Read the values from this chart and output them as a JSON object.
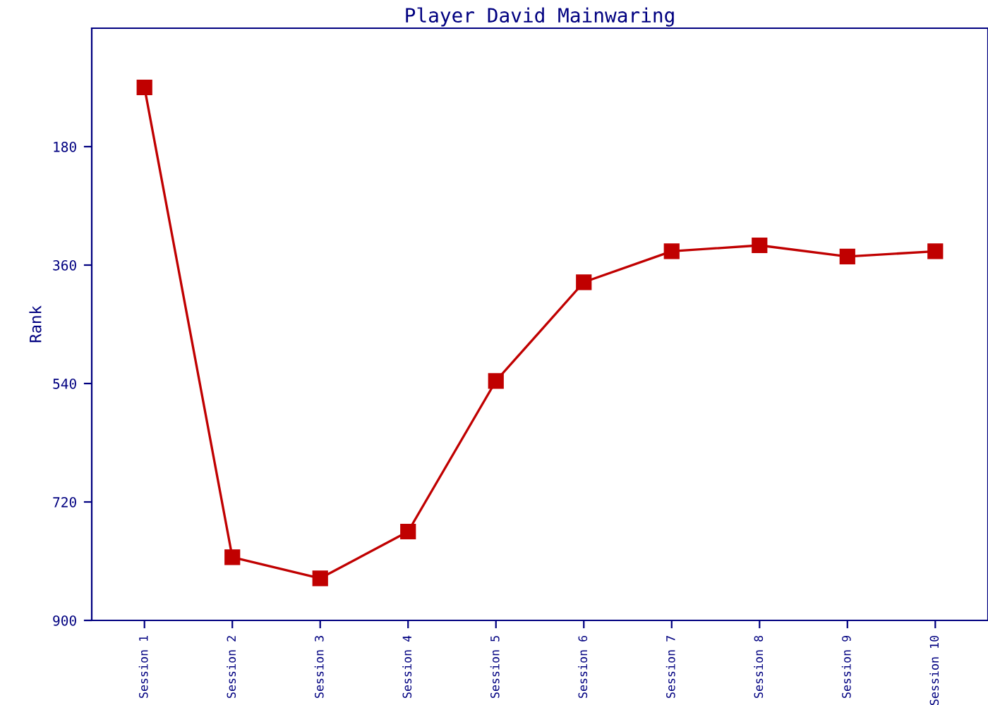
{
  "chart_data": {
    "type": "line",
    "title": "Player David Mainwaring",
    "ylabel": "Rank",
    "categories": [
      "Session 1",
      "Session 2",
      "Session 3",
      "Session 4",
      "Session 5",
      "Session 6",
      "Session 7",
      "Session 8",
      "Session 9",
      "Session 10"
    ],
    "series": [
      {
        "color": "#c00000",
        "values": [
          90,
          804,
          836,
          765,
          536,
          386,
          339,
          330,
          347,
          339
        ]
      }
    ],
    "ylim": [
      900,
      0
    ],
    "yticks": [
      180,
      360,
      540,
      720,
      900
    ],
    "grid": false,
    "legend": false,
    "marker": "square",
    "line_style": "solid"
  }
}
